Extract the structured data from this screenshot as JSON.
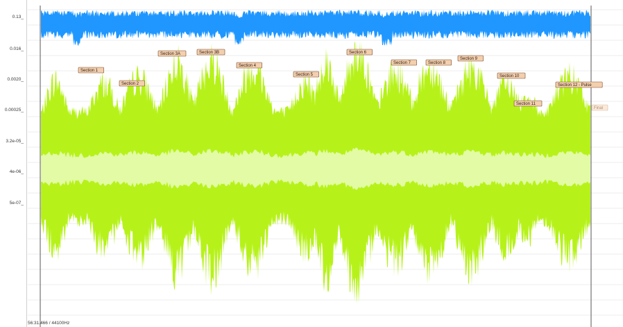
{
  "colors": {
    "top_wave": "#1f97ff",
    "main_wave": "#b6f21a",
    "core_wave": "#e2fba4",
    "marker_fill": "#f3cfae",
    "marker_border": "#7a4a2a"
  },
  "y_axis": {
    "labels": [
      "0.13_",
      "0.016_",
      "0.0020_",
      "0.00025_",
      "3.2e-05_",
      "4e-06_",
      "5e-07_"
    ]
  },
  "markers": [
    "Section 1",
    "Section 2",
    "Section 3A",
    "Section 3B",
    "Section 4",
    "Section 5",
    "Section 6",
    "Section 7",
    "Section 8",
    "Section 9",
    "Section 10",
    "Section 11",
    "Section 12 - Pulse",
    "Final"
  ],
  "status": {
    "position": "56:31.466 / 44100Hz"
  }
}
